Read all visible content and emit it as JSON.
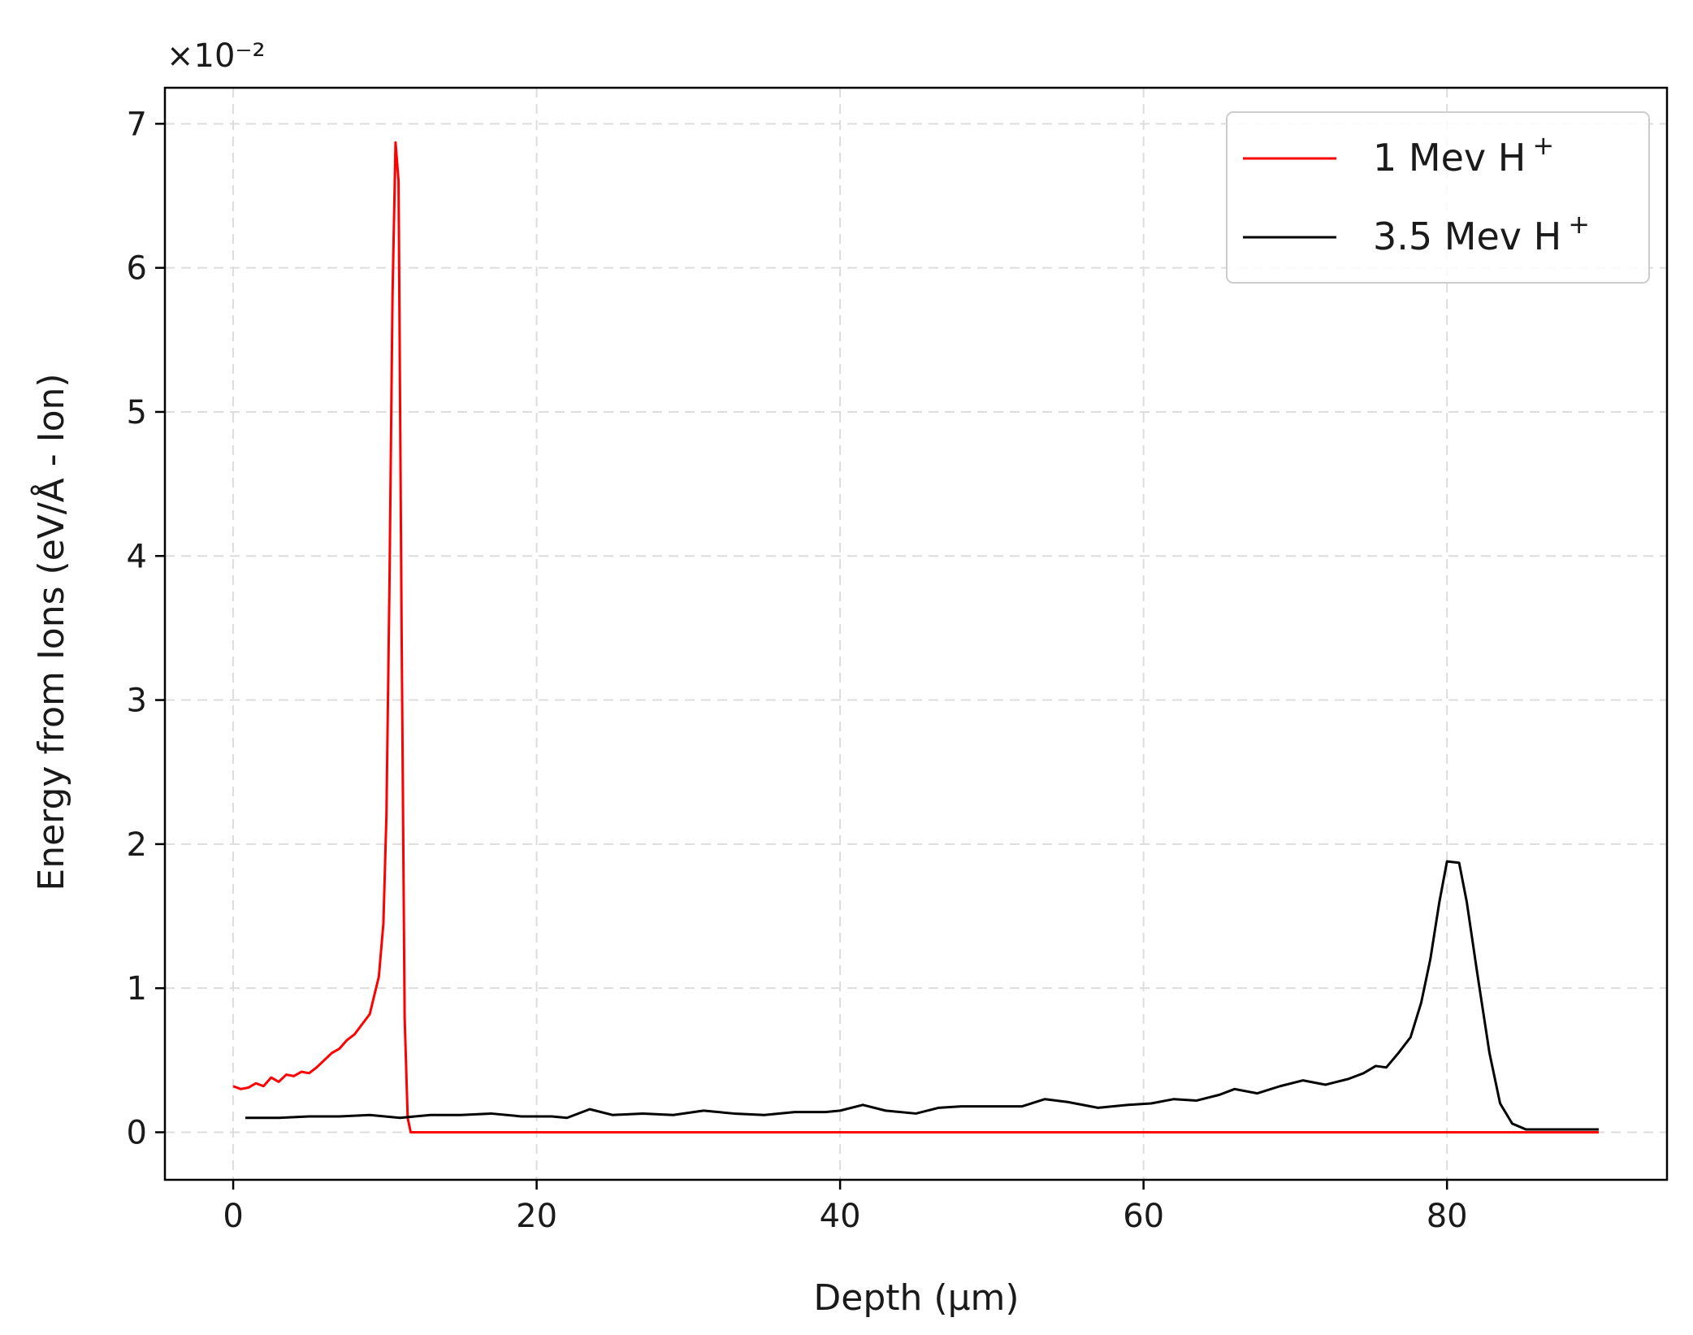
{
  "chart_data": {
    "type": "line",
    "title": "",
    "xlabel": "Depth (μm)",
    "ylabel": "Energy from Ions (eV/Å - Ion)",
    "y_offset_label": "×10⁻²",
    "y_scale_factor": 0.01,
    "xlim": [
      -4.5,
      94.5
    ],
    "ylim": [
      -0.33,
      7.25
    ],
    "xticks": [
      0,
      20,
      40,
      60,
      80
    ],
    "yticks": [
      0,
      1,
      2,
      3,
      4,
      5,
      6,
      7
    ],
    "grid": true,
    "legend_position": "top-right",
    "series": [
      {
        "name": "1 Mev H",
        "name_superscript": "+",
        "color": "#ff0000",
        "points": [
          [
            0,
            0.32
          ],
          [
            0.5,
            0.3
          ],
          [
            1,
            0.31
          ],
          [
            1.5,
            0.34
          ],
          [
            2,
            0.32
          ],
          [
            2.5,
            0.38
          ],
          [
            3,
            0.35
          ],
          [
            3.5,
            0.4
          ],
          [
            4,
            0.39
          ],
          [
            4.5,
            0.42
          ],
          [
            5,
            0.41
          ],
          [
            5.5,
            0.45
          ],
          [
            6,
            0.5
          ],
          [
            6.5,
            0.55
          ],
          [
            7,
            0.58
          ],
          [
            7.5,
            0.64
          ],
          [
            8,
            0.68
          ],
          [
            8.5,
            0.75
          ],
          [
            9,
            0.82
          ],
          [
            9.3,
            0.95
          ],
          [
            9.6,
            1.08
          ],
          [
            9.9,
            1.45
          ],
          [
            10.1,
            2.2
          ],
          [
            10.3,
            3.8
          ],
          [
            10.5,
            5.8
          ],
          [
            10.7,
            6.87
          ],
          [
            10.9,
            6.6
          ],
          [
            11.1,
            3.5
          ],
          [
            11.3,
            0.8
          ],
          [
            11.5,
            0.1
          ],
          [
            11.7,
            0.0
          ],
          [
            20,
            0.0
          ],
          [
            40,
            0.0
          ],
          [
            60,
            0.0
          ],
          [
            80,
            0.0
          ],
          [
            90,
            0.0
          ]
        ]
      },
      {
        "name": "3.5 Mev H",
        "name_superscript": "+",
        "color": "#000000",
        "points": [
          [
            0.8,
            0.1
          ],
          [
            3,
            0.1
          ],
          [
            5,
            0.11
          ],
          [
            7,
            0.11
          ],
          [
            9,
            0.12
          ],
          [
            11,
            0.1
          ],
          [
            13,
            0.12
          ],
          [
            15,
            0.12
          ],
          [
            17,
            0.13
          ],
          [
            19,
            0.11
          ],
          [
            21,
            0.11
          ],
          [
            22,
            0.1
          ],
          [
            23.5,
            0.16
          ],
          [
            25,
            0.12
          ],
          [
            27,
            0.13
          ],
          [
            29,
            0.12
          ],
          [
            31,
            0.15
          ],
          [
            33,
            0.13
          ],
          [
            35,
            0.12
          ],
          [
            37,
            0.14
          ],
          [
            39,
            0.14
          ],
          [
            40,
            0.15
          ],
          [
            41.5,
            0.19
          ],
          [
            43,
            0.15
          ],
          [
            45,
            0.13
          ],
          [
            46.5,
            0.17
          ],
          [
            48,
            0.18
          ],
          [
            50,
            0.18
          ],
          [
            52,
            0.18
          ],
          [
            53.5,
            0.23
          ],
          [
            55,
            0.21
          ],
          [
            57,
            0.17
          ],
          [
            59,
            0.19
          ],
          [
            60.5,
            0.2
          ],
          [
            62,
            0.23
          ],
          [
            63.5,
            0.22
          ],
          [
            65,
            0.26
          ],
          [
            66,
            0.3
          ],
          [
            67.5,
            0.27
          ],
          [
            69,
            0.32
          ],
          [
            70.5,
            0.36
          ],
          [
            72,
            0.33
          ],
          [
            73.5,
            0.37
          ],
          [
            74.5,
            0.41
          ],
          [
            75.3,
            0.46
          ],
          [
            76,
            0.45
          ],
          [
            76.8,
            0.55
          ],
          [
            77.6,
            0.66
          ],
          [
            78.3,
            0.9
          ],
          [
            78.9,
            1.2
          ],
          [
            79.5,
            1.6
          ],
          [
            80,
            1.88
          ],
          [
            80.8,
            1.87
          ],
          [
            81.3,
            1.6
          ],
          [
            82,
            1.1
          ],
          [
            82.8,
            0.55
          ],
          [
            83.5,
            0.2
          ],
          [
            84.3,
            0.06
          ],
          [
            85.2,
            0.02
          ],
          [
            87,
            0.02
          ],
          [
            90,
            0.02
          ]
        ]
      }
    ]
  }
}
